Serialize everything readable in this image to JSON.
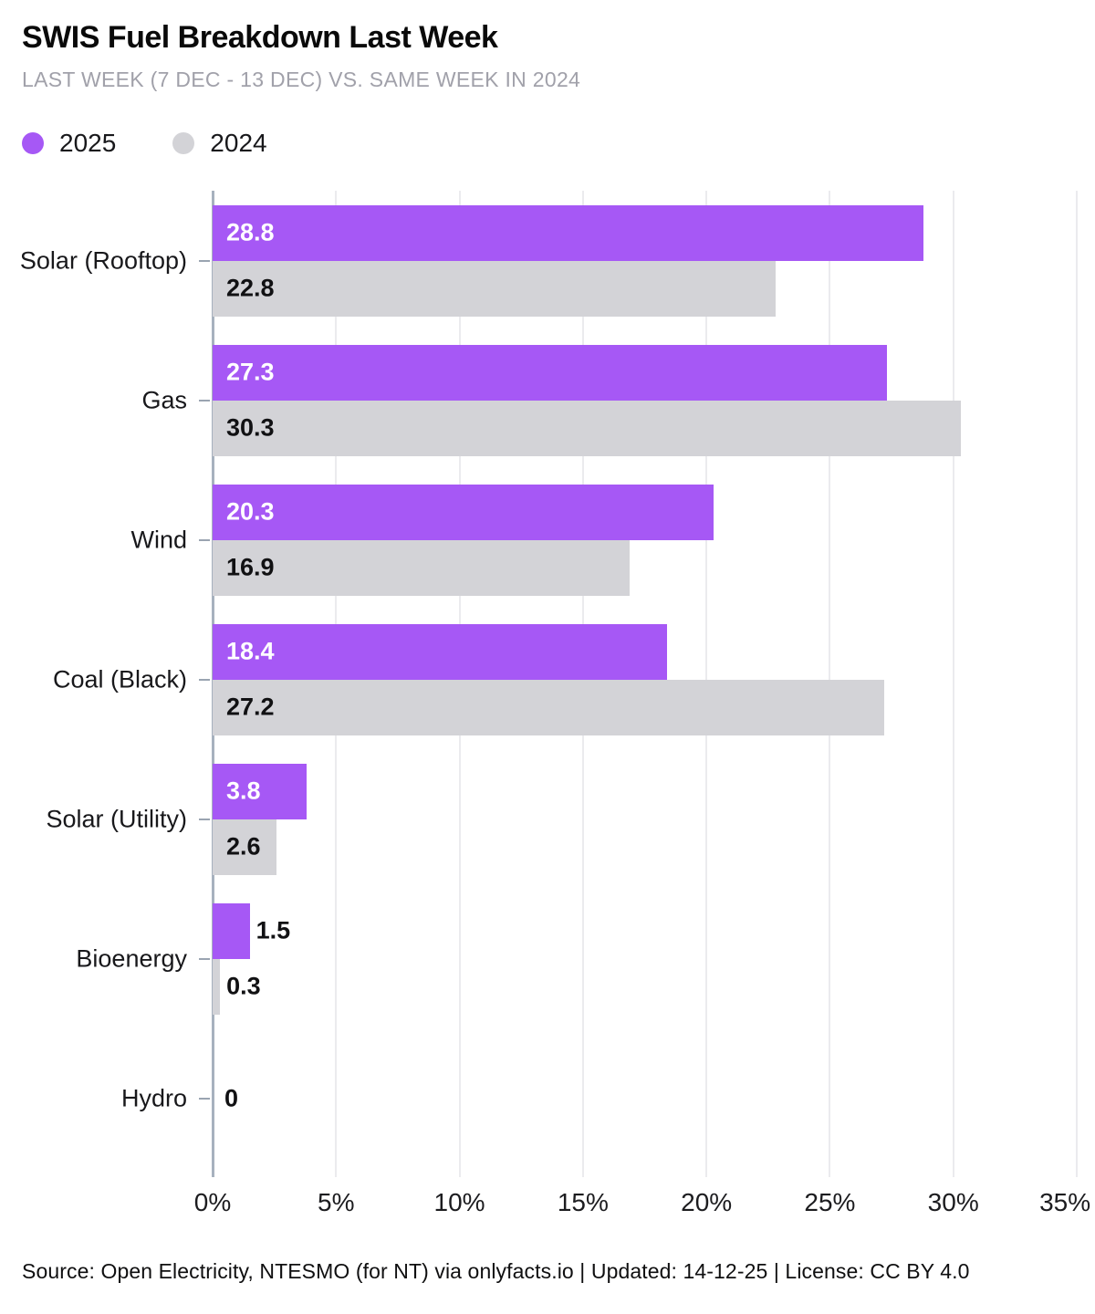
{
  "header": {
    "title": "SWIS Fuel Breakdown Last Week",
    "subtitle": "LAST WEEK (7 DEC - 13 DEC) VS. SAME WEEK IN 2024"
  },
  "legend": [
    {
      "label": "2025",
      "color": "#a658f5"
    },
    {
      "label": "2024",
      "color": "#d3d3d7"
    }
  ],
  "chart_data": {
    "type": "bar",
    "orientation": "horizontal",
    "title": "SWIS Fuel Breakdown Last Week",
    "xlabel": "",
    "ylabel": "",
    "categories": [
      "Solar (Rooftop)",
      "Gas",
      "Wind",
      "Coal (Black)",
      "Solar (Utility)",
      "Bioenergy",
      "Hydro"
    ],
    "series": [
      {
        "name": "2025",
        "color": "#a658f5",
        "values": [
          28.8,
          27.3,
          20.3,
          18.4,
          3.8,
          1.5,
          0
        ],
        "labels": [
          "28.8",
          "27.3",
          "20.3",
          "18.4",
          "3.8",
          "1.5",
          "0"
        ]
      },
      {
        "name": "2024",
        "color": "#d3d3d7",
        "values": [
          22.8,
          30.3,
          16.9,
          27.2,
          2.6,
          0.3,
          0
        ],
        "labels": [
          "22.8",
          "30.3",
          "16.9",
          "27.2",
          "2.6",
          "0.3",
          "0"
        ]
      }
    ],
    "zero_label": "0",
    "xlim": [
      0,
      35
    ],
    "x_ticks": [
      "0%",
      "5%",
      "10%",
      "15%",
      "20%",
      "25%",
      "30%",
      "35%"
    ],
    "grid": true,
    "legend_position": "top-left",
    "label_inside_threshold": 2.5
  },
  "footer": {
    "text": "Source: Open Electricity, NTESMO (for NT) via onlyfacts.io | Updated: 14-12-25 | License: CC BY 4.0"
  }
}
